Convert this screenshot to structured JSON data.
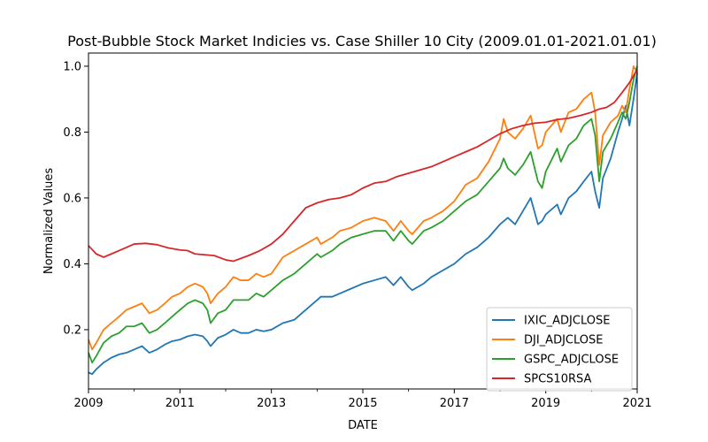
{
  "chart_data": {
    "type": "line",
    "title": "Post-Bubble Stock Market Indicies vs. Case Shiller 10 City (2009.01.01-2021.01.01)",
    "xlabel": "DATE",
    "ylabel": "Normalized Values",
    "xlim": [
      2009,
      2021
    ],
    "ylim": [
      0.02,
      1.04
    ],
    "x_ticks": [
      2009,
      2011,
      2013,
      2015,
      2017,
      2019,
      2021
    ],
    "x_tick_labels": [
      "2009",
      "2011",
      "2013",
      "2015",
      "2017",
      "2019",
      "2021"
    ],
    "y_ticks": [
      0.2,
      0.4,
      0.6,
      0.8,
      1.0
    ],
    "y_tick_labels": [
      "0.2",
      "0.4",
      "0.6",
      "0.8",
      "1.0"
    ],
    "grid": false,
    "legend_position": "lower-right",
    "series": [
      {
        "name": "IXIC_ADJCLOSE",
        "color": "#1f77b4",
        "x": [
          2009.0,
          2009.08,
          2009.17,
          2009.25,
          2009.33,
          2009.5,
          2009.67,
          2009.83,
          2010.0,
          2010.17,
          2010.33,
          2010.5,
          2010.67,
          2010.83,
          2011.0,
          2011.17,
          2011.33,
          2011.5,
          2011.6,
          2011.67,
          2011.83,
          2012.0,
          2012.17,
          2012.33,
          2012.5,
          2012.67,
          2012.83,
          2013.0,
          2013.25,
          2013.5,
          2013.75,
          2014.0,
          2014.08,
          2014.33,
          2014.5,
          2014.75,
          2015.0,
          2015.25,
          2015.5,
          2015.67,
          2015.83,
          2016.0,
          2016.08,
          2016.33,
          2016.5,
          2016.75,
          2017.0,
          2017.25,
          2017.5,
          2017.75,
          2018.0,
          2018.17,
          2018.33,
          2018.5,
          2018.67,
          2018.83,
          2018.92,
          2019.0,
          2019.25,
          2019.33,
          2019.5,
          2019.67,
          2019.83,
          2020.0,
          2020.08,
          2020.17,
          2020.25,
          2020.42,
          2020.58,
          2020.67,
          2020.75,
          2020.83,
          2020.92,
          2021.0
        ],
        "y": [
          0.07,
          0.065,
          0.08,
          0.09,
          0.1,
          0.115,
          0.125,
          0.13,
          0.14,
          0.15,
          0.13,
          0.14,
          0.155,
          0.165,
          0.17,
          0.18,
          0.185,
          0.18,
          0.165,
          0.15,
          0.175,
          0.185,
          0.2,
          0.19,
          0.19,
          0.2,
          0.195,
          0.2,
          0.22,
          0.23,
          0.26,
          0.29,
          0.3,
          0.3,
          0.31,
          0.325,
          0.34,
          0.35,
          0.36,
          0.335,
          0.36,
          0.33,
          0.32,
          0.34,
          0.36,
          0.38,
          0.4,
          0.43,
          0.45,
          0.48,
          0.52,
          0.54,
          0.52,
          0.56,
          0.6,
          0.52,
          0.53,
          0.55,
          0.58,
          0.55,
          0.6,
          0.62,
          0.65,
          0.68,
          0.62,
          0.57,
          0.66,
          0.72,
          0.8,
          0.84,
          0.88,
          0.82,
          0.9,
          0.98
        ]
      },
      {
        "name": "DJI_ADJCLOSE",
        "color": "#ff7f0e",
        "x": [
          2009.0,
          2009.08,
          2009.17,
          2009.25,
          2009.33,
          2009.5,
          2009.67,
          2009.83,
          2010.0,
          2010.17,
          2010.33,
          2010.5,
          2010.67,
          2010.83,
          2011.0,
          2011.17,
          2011.33,
          2011.5,
          2011.6,
          2011.67,
          2011.83,
          2012.0,
          2012.17,
          2012.33,
          2012.5,
          2012.67,
          2012.83,
          2013.0,
          2013.25,
          2013.5,
          2013.75,
          2014.0,
          2014.08,
          2014.33,
          2014.5,
          2014.75,
          2015.0,
          2015.25,
          2015.5,
          2015.67,
          2015.83,
          2016.0,
          2016.08,
          2016.33,
          2016.5,
          2016.75,
          2017.0,
          2017.25,
          2017.5,
          2017.75,
          2018.0,
          2018.08,
          2018.17,
          2018.33,
          2018.5,
          2018.67,
          2018.83,
          2018.92,
          2019.0,
          2019.25,
          2019.33,
          2019.5,
          2019.67,
          2019.83,
          2020.0,
          2020.08,
          2020.17,
          2020.25,
          2020.42,
          2020.58,
          2020.67,
          2020.75,
          2020.83,
          2020.92,
          2021.0
        ],
        "y": [
          0.17,
          0.14,
          0.16,
          0.18,
          0.2,
          0.22,
          0.24,
          0.26,
          0.27,
          0.28,
          0.25,
          0.26,
          0.28,
          0.3,
          0.31,
          0.33,
          0.34,
          0.33,
          0.31,
          0.28,
          0.31,
          0.33,
          0.36,
          0.35,
          0.35,
          0.37,
          0.36,
          0.37,
          0.42,
          0.44,
          0.46,
          0.48,
          0.46,
          0.48,
          0.5,
          0.51,
          0.53,
          0.54,
          0.53,
          0.5,
          0.53,
          0.5,
          0.49,
          0.53,
          0.54,
          0.56,
          0.59,
          0.64,
          0.66,
          0.71,
          0.78,
          0.84,
          0.8,
          0.78,
          0.81,
          0.85,
          0.75,
          0.76,
          0.8,
          0.84,
          0.8,
          0.86,
          0.87,
          0.9,
          0.92,
          0.86,
          0.7,
          0.79,
          0.83,
          0.85,
          0.88,
          0.86,
          0.93,
          1.0,
          0.98
        ]
      },
      {
        "name": "GSPC_ADJCLOSE",
        "color": "#2ca02c",
        "x": [
          2009.0,
          2009.08,
          2009.17,
          2009.25,
          2009.33,
          2009.5,
          2009.67,
          2009.83,
          2010.0,
          2010.17,
          2010.33,
          2010.5,
          2010.67,
          2010.83,
          2011.0,
          2011.17,
          2011.33,
          2011.5,
          2011.6,
          2011.67,
          2011.83,
          2012.0,
          2012.17,
          2012.33,
          2012.5,
          2012.67,
          2012.83,
          2013.0,
          2013.25,
          2013.5,
          2013.75,
          2014.0,
          2014.08,
          2014.33,
          2014.5,
          2014.75,
          2015.0,
          2015.25,
          2015.5,
          2015.67,
          2015.83,
          2016.0,
          2016.08,
          2016.33,
          2016.5,
          2016.75,
          2017.0,
          2017.25,
          2017.5,
          2017.75,
          2018.0,
          2018.08,
          2018.17,
          2018.33,
          2018.5,
          2018.67,
          2018.83,
          2018.92,
          2019.0,
          2019.25,
          2019.33,
          2019.5,
          2019.67,
          2019.83,
          2020.0,
          2020.08,
          2020.17,
          2020.25,
          2020.42,
          2020.58,
          2020.67,
          2020.75,
          2020.83,
          2020.92,
          2021.0
        ],
        "y": [
          0.13,
          0.1,
          0.12,
          0.14,
          0.16,
          0.18,
          0.19,
          0.21,
          0.21,
          0.22,
          0.19,
          0.2,
          0.22,
          0.24,
          0.26,
          0.28,
          0.29,
          0.28,
          0.26,
          0.22,
          0.25,
          0.26,
          0.29,
          0.29,
          0.29,
          0.31,
          0.3,
          0.32,
          0.35,
          0.37,
          0.4,
          0.43,
          0.42,
          0.44,
          0.46,
          0.48,
          0.49,
          0.5,
          0.5,
          0.47,
          0.5,
          0.47,
          0.46,
          0.5,
          0.51,
          0.53,
          0.56,
          0.59,
          0.61,
          0.65,
          0.69,
          0.72,
          0.69,
          0.67,
          0.7,
          0.74,
          0.65,
          0.63,
          0.68,
          0.75,
          0.71,
          0.76,
          0.78,
          0.82,
          0.84,
          0.79,
          0.65,
          0.74,
          0.78,
          0.83,
          0.86,
          0.84,
          0.89,
          0.96,
          1.0
        ]
      },
      {
        "name": "SPCS10RSA",
        "color": "#d62728",
        "x": [
          2009.0,
          2009.17,
          2009.33,
          2009.5,
          2009.75,
          2010.0,
          2010.25,
          2010.5,
          2010.75,
          2011.0,
          2011.17,
          2011.33,
          2011.5,
          2011.75,
          2012.0,
          2012.17,
          2012.5,
          2012.75,
          2013.0,
          2013.25,
          2013.5,
          2013.75,
          2014.0,
          2014.25,
          2014.5,
          2014.75,
          2015.0,
          2015.25,
          2015.5,
          2015.75,
          2016.0,
          2016.25,
          2016.5,
          2016.75,
          2017.0,
          2017.25,
          2017.5,
          2017.75,
          2018.0,
          2018.25,
          2018.5,
          2018.75,
          2019.0,
          2019.25,
          2019.5,
          2019.75,
          2020.0,
          2020.17,
          2020.33,
          2020.5,
          2020.67,
          2020.83,
          2021.0
        ],
        "y": [
          0.455,
          0.43,
          0.42,
          0.43,
          0.445,
          0.46,
          0.462,
          0.458,
          0.448,
          0.442,
          0.44,
          0.43,
          0.428,
          0.425,
          0.412,
          0.408,
          0.425,
          0.44,
          0.46,
          0.49,
          0.53,
          0.57,
          0.585,
          0.595,
          0.6,
          0.61,
          0.63,
          0.645,
          0.65,
          0.665,
          0.675,
          0.685,
          0.695,
          0.71,
          0.725,
          0.74,
          0.755,
          0.775,
          0.795,
          0.81,
          0.82,
          0.827,
          0.83,
          0.838,
          0.842,
          0.85,
          0.86,
          0.87,
          0.875,
          0.89,
          0.92,
          0.95,
          0.99
        ]
      }
    ]
  }
}
